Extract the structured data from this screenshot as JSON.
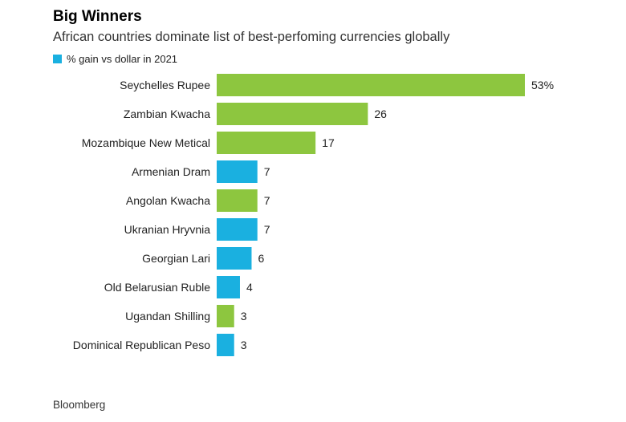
{
  "chart_data": {
    "type": "bar",
    "orientation": "horizontal",
    "title": "Big Winners",
    "subtitle": "African countries dominate list of best-perfoming currencies globally",
    "legend": [
      {
        "label": "% gain vs dollar in 2021",
        "color": "#1ab0e0"
      }
    ],
    "categories": [
      "Seychelles Rupee",
      "Zambian Kwacha",
      "Mozambique New Metical",
      "Armenian Dram",
      "Angolan Kwacha",
      "Ukranian Hryvnia",
      "Georgian Lari",
      "Old Belarusian Ruble",
      "Ugandan Shilling",
      "Dominical Republican Peso"
    ],
    "values": [
      53,
      26,
      17,
      7,
      7,
      7,
      6,
      4,
      3,
      3
    ],
    "value_labels": [
      "53%",
      "26",
      "17",
      "7",
      "7",
      "7",
      "6",
      "4",
      "3",
      "3"
    ],
    "bar_colors": [
      "#8dc63f",
      "#8dc63f",
      "#8dc63f",
      "#1ab0e0",
      "#8dc63f",
      "#1ab0e0",
      "#1ab0e0",
      "#1ab0e0",
      "#8dc63f",
      "#1ab0e0"
    ],
    "xlim": [
      0,
      53
    ],
    "grid": false,
    "legend_position": "top-left"
  },
  "source": "Bloomberg"
}
